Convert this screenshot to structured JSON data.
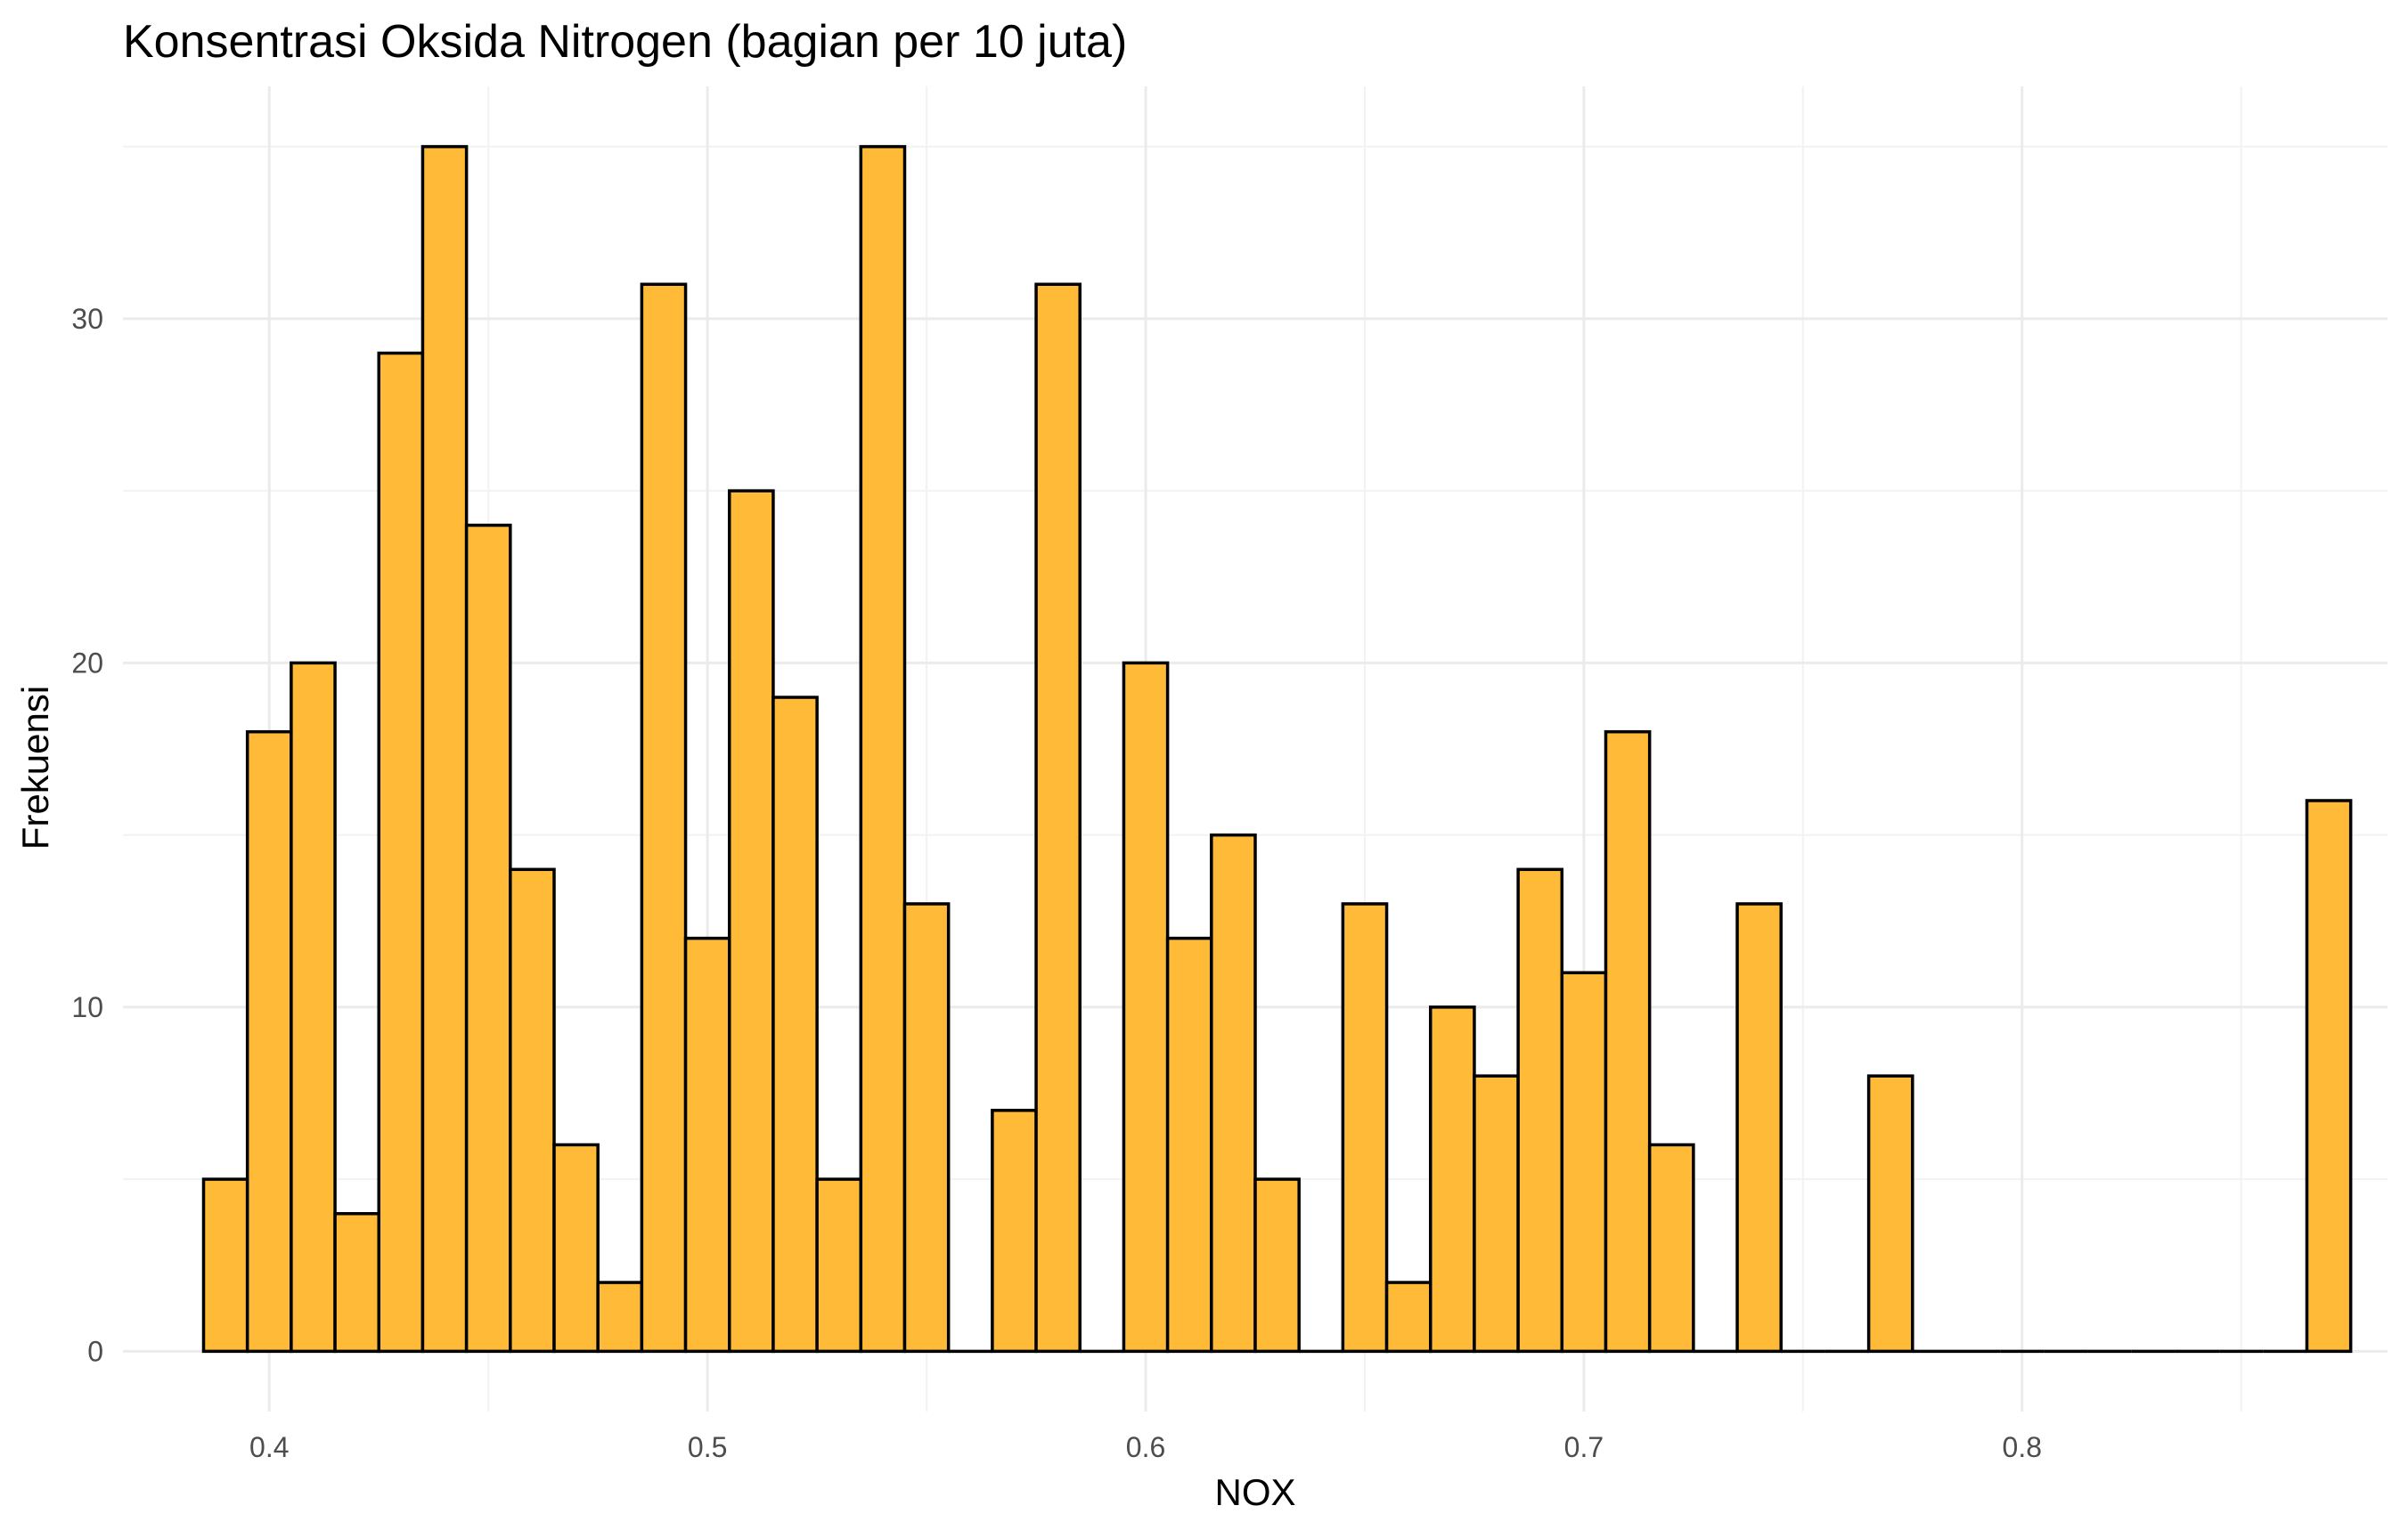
{
  "chart_data": {
    "type": "bar",
    "title": "Konsentrasi Oksida Nitrogen (bagian per 10 juta)",
    "xlabel": "NOX",
    "ylabel": "Frekuensi",
    "xlim": [
      0.3666,
      0.8834
    ],
    "ylim": [
      -1.75,
      36.75
    ],
    "x_ticks": [
      0.4,
      0.5,
      0.6,
      0.7,
      0.8
    ],
    "x_tick_labels": [
      "0.4",
      "0.5",
      "0.6",
      "0.7",
      "0.8"
    ],
    "y_ticks": [
      0,
      10,
      20,
      30
    ],
    "y_tick_labels": [
      "0",
      "10",
      "20",
      "30"
    ],
    "bin_width": 0.01,
    "bin_start": 0.385,
    "values": [
      5,
      18,
      20,
      4,
      29,
      35,
      24,
      14,
      6,
      2,
      31,
      12,
      25,
      19,
      5,
      35,
      13,
      0,
      7,
      31,
      0,
      20,
      12,
      15,
      5,
      0,
      13,
      2,
      10,
      8,
      14,
      11,
      18,
      6,
      0,
      13,
      0,
      0,
      8,
      0,
      0,
      0,
      0,
      0,
      0,
      0,
      0,
      0,
      16
    ],
    "fill_color": "#FFBA38",
    "outline_color": "#000000",
    "background": "#FFFFFF",
    "grid": true,
    "legend": "none"
  }
}
